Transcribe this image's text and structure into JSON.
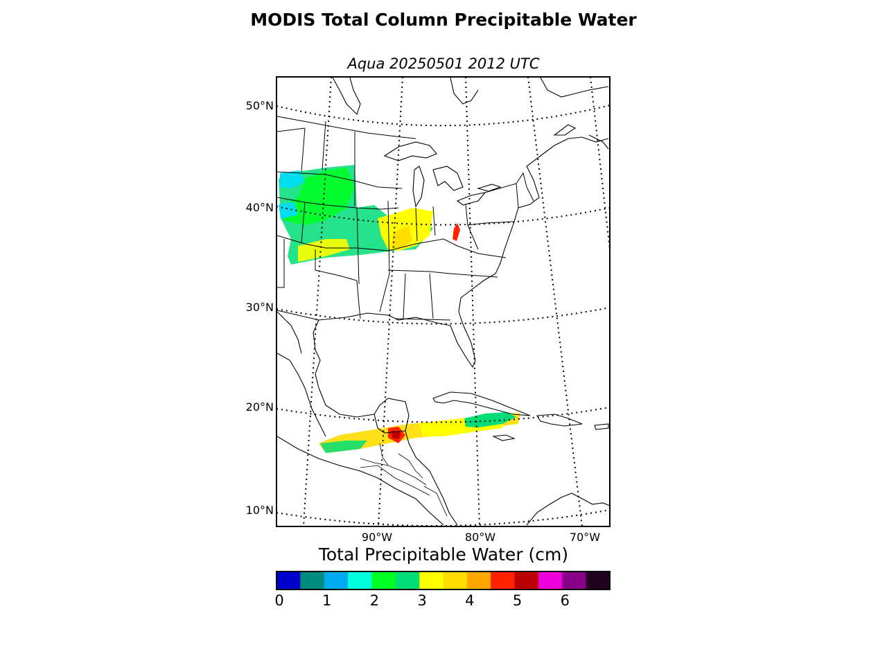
{
  "title": "MODIS Total Column Precipitable Water",
  "subtitle": "Aqua 20250501 2012 UTC",
  "lat_labels": [
    "50°N",
    "40°N",
    "30°N",
    "20°N",
    "10°N"
  ],
  "lon_labels": [
    "90°W",
    "80°W",
    "70°W"
  ],
  "colorbar": {
    "title": "Total Precipitable Water (cm)",
    "ticks": [
      "0",
      "1",
      "2",
      "3",
      "4",
      "5",
      "6"
    ],
    "colors": [
      "#0000cc",
      "#008b80",
      "#00aaee",
      "#00ffdd",
      "#00ff22",
      "#00dd77",
      "#ffff00",
      "#ffdd00",
      "#ffa500",
      "#ff2200",
      "#bb0000",
      "#ee00dd",
      "#880088",
      "#220022"
    ]
  }
}
